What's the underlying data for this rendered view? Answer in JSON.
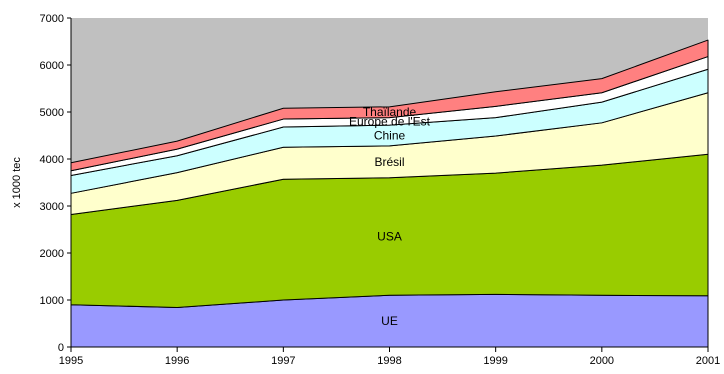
{
  "chart_data": {
    "type": "area",
    "stacked": true,
    "x": [
      1995,
      1996,
      1997,
      1998,
      1999,
      2000,
      2001
    ],
    "x_tick_labels": [
      "1995",
      "1996",
      "1997",
      "1998",
      "1999",
      "2000",
      "2001"
    ],
    "ylabel": "x 1000 tec",
    "ylim": [
      0,
      7000
    ],
    "y_ticks": [
      0,
      1000,
      2000,
      3000,
      4000,
      5000,
      6000,
      7000
    ],
    "y_tick_labels": [
      "0",
      "1000",
      "2000",
      "3000",
      "4000",
      "5000",
      "6000",
      "7000"
    ],
    "grid": false,
    "plot_background": "#c0c0c0",
    "series": [
      {
        "name": "UE",
        "color": "#9999ff",
        "values": [
          900,
          840,
          1000,
          1100,
          1120,
          1100,
          1090
        ]
      },
      {
        "name": "USA",
        "color": "#99cc00",
        "values": [
          1920,
          2280,
          2570,
          2500,
          2580,
          2770,
          3010
        ]
      },
      {
        "name": "Brésil",
        "color": "#ffffcc",
        "values": [
          450,
          590,
          680,
          680,
          790,
          900,
          1310
        ]
      },
      {
        "name": "Chine",
        "color": "#ccffff",
        "values": [
          380,
          360,
          430,
          440,
          390,
          440,
          500
        ]
      },
      {
        "name": "Europe de l'Est",
        "color": "#ffffff",
        "values": [
          100,
          140,
          170,
          160,
          240,
          200,
          270
        ]
      },
      {
        "name": "Thaïlande",
        "color": "#ff8080",
        "values": [
          170,
          170,
          230,
          230,
          310,
          300,
          350
        ]
      }
    ]
  }
}
